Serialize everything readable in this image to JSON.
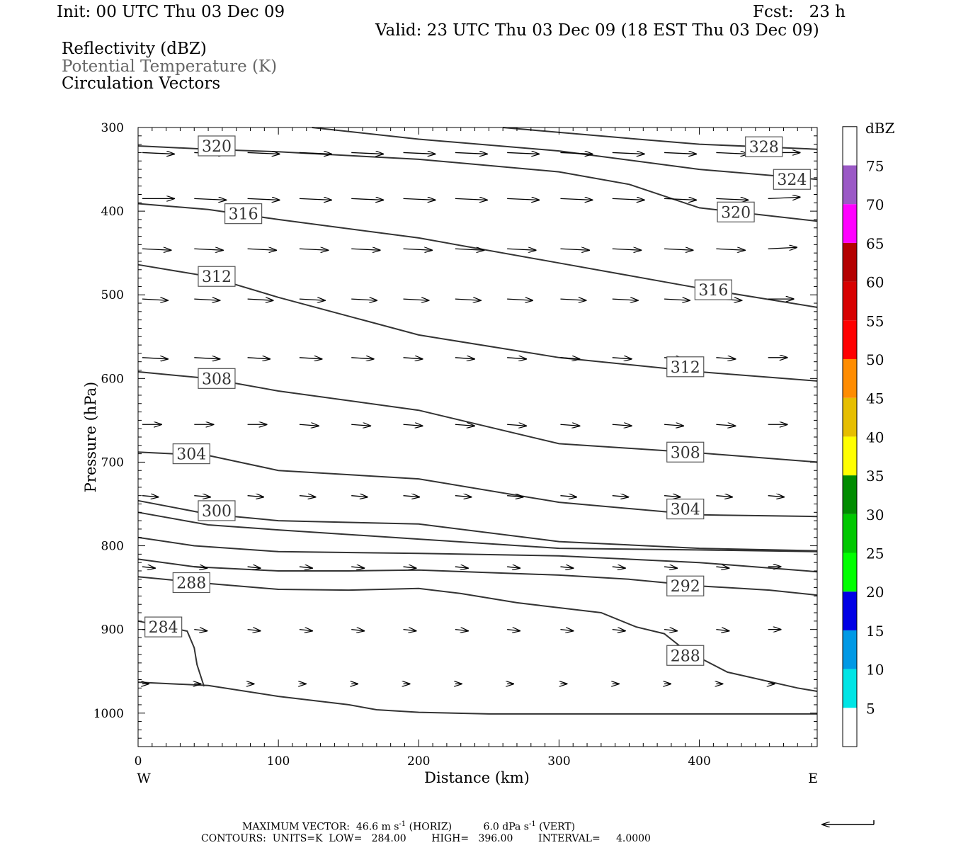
{
  "header": {
    "init": "Init: 00 UTC Thu 03 Dec 09",
    "fcst": "Fcst:   23 h",
    "valid": "Valid: 23 UTC Thu 03 Dec 09 (18 EST Thu 03 Dec 09)",
    "fields": [
      "Reflectivity (dBZ)",
      "Potential Temperature (K)",
      "Circulation Vectors"
    ]
  },
  "footer": {
    "max_vector_prefix": "MAXIMUM VECTOR:  46.6 m s",
    "max_vector_mid": " (HORIZ)          6.0 dPa s",
    "max_vector_suffix": " (VERT)",
    "superscript": "-1",
    "contours": "CONTOURS:  UNITS=K  LOW=   284.00        HIGH=   396.00        INTERVAL=     4.0000"
  },
  "colors": {
    "contour": "#333333",
    "vector": "#000000",
    "frame": "#000000",
    "legend_gray": "#666666"
  },
  "chart_data": {
    "type": "line",
    "description_fields": [
      "Reflectivity (dBZ)",
      "Potential Temperature (K)",
      "Circulation Vectors"
    ],
    "xlabel": "Distance (km)",
    "ylabel": "Pressure (hPa)",
    "xlim": [
      0,
      484
    ],
    "ylim": [
      300,
      1040
    ],
    "y_inverted": true,
    "x_ticks": [
      0,
      100,
      200,
      300,
      400
    ],
    "y_ticks": [
      300,
      400,
      500,
      600,
      700,
      800,
      900,
      1000
    ],
    "x_end_labels": {
      "left": "W",
      "right": "E"
    },
    "grid": false,
    "contour_units": "K",
    "contours": [
      {
        "value": 284,
        "label": "284",
        "points": [
          [
            0,
            963
          ],
          [
            50,
            967
          ],
          [
            100,
            980
          ],
          [
            150,
            990
          ],
          [
            170,
            996
          ],
          [
            200,
            999
          ],
          [
            250,
            1001
          ],
          [
            300,
            1001
          ],
          [
            350,
            1001
          ],
          [
            400,
            1001
          ],
          [
            484,
            1001
          ]
        ]
      },
      {
        "value": 284,
        "label": "",
        "points": [
          [
            0,
            890
          ],
          [
            35,
            902
          ],
          [
            40,
            922
          ],
          [
            42,
            942
          ],
          [
            47,
            968
          ]
        ]
      },
      {
        "value": 288,
        "label": "288",
        "points": [
          [
            0,
            837
          ],
          [
            50,
            845
          ],
          [
            100,
            852
          ],
          [
            150,
            853
          ],
          [
            200,
            851
          ],
          [
            230,
            857
          ],
          [
            270,
            868
          ],
          [
            330,
            880
          ],
          [
            355,
            897
          ],
          [
            375,
            905
          ],
          [
            390,
            925
          ],
          [
            420,
            951
          ],
          [
            470,
            970
          ],
          [
            484,
            974
          ]
        ]
      },
      {
        "value": 288,
        "label": "288",
        "points": [
          [
            387,
            924
          ],
          [
            390,
            925
          ]
        ]
      },
      {
        "value": 292,
        "label": "292",
        "points": [
          [
            0,
            816
          ],
          [
            40,
            825
          ],
          [
            100,
            830
          ],
          [
            150,
            830
          ],
          [
            200,
            829
          ],
          [
            300,
            835
          ],
          [
            350,
            840
          ],
          [
            400,
            848
          ],
          [
            450,
            853
          ],
          [
            484,
            859
          ]
        ]
      },
      {
        "value": 296,
        "label": "",
        "points": [
          [
            0,
            790
          ],
          [
            40,
            800
          ],
          [
            100,
            807
          ],
          [
            200,
            809
          ],
          [
            300,
            812
          ],
          [
            400,
            820
          ],
          [
            484,
            831
          ]
        ]
      },
      {
        "value": 296,
        "label": "",
        "points": [
          [
            0,
            760
          ],
          [
            50,
            775
          ],
          [
            100,
            781
          ],
          [
            200,
            792
          ],
          [
            300,
            803
          ],
          [
            400,
            805
          ],
          [
            484,
            807
          ]
        ]
      },
      {
        "value": 300,
        "label": "300",
        "points": [
          [
            0,
            746
          ],
          [
            50,
            762
          ],
          [
            100,
            770
          ],
          [
            200,
            774
          ],
          [
            300,
            795
          ],
          [
            400,
            803
          ],
          [
            484,
            806
          ]
        ]
      },
      {
        "value": 304,
        "label": "304",
        "points": [
          [
            0,
            688
          ],
          [
            50,
            692
          ],
          [
            100,
            710
          ],
          [
            200,
            720
          ],
          [
            300,
            748
          ],
          [
            400,
            763
          ],
          [
            484,
            765
          ]
        ]
      },
      {
        "value": 308,
        "label": "308",
        "points": [
          [
            0,
            592
          ],
          [
            50,
            600
          ],
          [
            100,
            615
          ],
          [
            200,
            638
          ],
          [
            300,
            678
          ],
          [
            400,
            689
          ],
          [
            484,
            700
          ]
        ]
      },
      {
        "value": 312,
        "label": "312",
        "points": [
          [
            0,
            464
          ],
          [
            50,
            478
          ],
          [
            100,
            503
          ],
          [
            200,
            548
          ],
          [
            300,
            575
          ],
          [
            400,
            592
          ],
          [
            484,
            603
          ]
        ]
      },
      {
        "value": 316,
        "label": "316",
        "points": [
          [
            0,
            391
          ],
          [
            50,
            398
          ],
          [
            100,
            410
          ],
          [
            200,
            432
          ],
          [
            300,
            462
          ],
          [
            400,
            492
          ],
          [
            484,
            515
          ]
        ]
      },
      {
        "value": 320,
        "label": "320",
        "points": [
          [
            0,
            322
          ],
          [
            50,
            326
          ],
          [
            100,
            329
          ],
          [
            200,
            338
          ],
          [
            300,
            353
          ],
          [
            350,
            368
          ],
          [
            400,
            396
          ],
          [
            484,
            412
          ]
        ]
      },
      {
        "value": 324,
        "label": "324",
        "points": [
          [
            124,
            300
          ],
          [
            200,
            314
          ],
          [
            300,
            328
          ],
          [
            400,
            350
          ],
          [
            484,
            362
          ]
        ]
      },
      {
        "value": 328,
        "label": "328",
        "points": [
          [
            260,
            300
          ],
          [
            350,
            313
          ],
          [
            400,
            320
          ],
          [
            484,
            326
          ]
        ]
      }
    ],
    "contour_labels": [
      {
        "text": "320",
        "x": 56,
        "y": 322
      },
      {
        "text": "316",
        "x": 75,
        "y": 403
      },
      {
        "text": "312",
        "x": 56,
        "y": 478
      },
      {
        "text": "316",
        "x": 410,
        "y": 494
      },
      {
        "text": "308",
        "x": 56,
        "y": 600
      },
      {
        "text": "312",
        "x": 390,
        "y": 586
      },
      {
        "text": "304",
        "x": 38,
        "y": 690
      },
      {
        "text": "308",
        "x": 390,
        "y": 688
      },
      {
        "text": "300",
        "x": 56,
        "y": 758
      },
      {
        "text": "304",
        "x": 390,
        "y": 756
      },
      {
        "text": "288",
        "x": 38,
        "y": 844
      },
      {
        "text": "292",
        "x": 390,
        "y": 848
      },
      {
        "text": "284",
        "x": 18,
        "y": 897
      },
      {
        "text": "288",
        "x": 390,
        "y": 931
      },
      {
        "text": "328",
        "x": 446,
        "y": 323
      },
      {
        "text": "324",
        "x": 466,
        "y": 362
      },
      {
        "text": "320",
        "x": 426,
        "y": 401
      }
    ],
    "vector_rows": [
      {
        "pressure": 330,
        "x": [
          0,
          37,
          75,
          112,
          149,
          186,
          223,
          260,
          298,
          335,
          372,
          409,
          446
        ],
        "u": [
          1.0,
          1.0,
          1.0,
          1.0,
          1.0,
          1.0,
          1.0,
          1.0,
          1.0,
          1.0,
          1.0,
          1.0,
          1.0
        ],
        "dy": [
          1,
          1,
          1,
          1,
          1,
          1,
          1,
          1,
          1,
          1,
          1,
          1,
          0
        ]
      },
      {
        "pressure": 385,
        "x": [
          0,
          37,
          75,
          112,
          149,
          186,
          223,
          260,
          298,
          335,
          372,
          409,
          446
        ],
        "u": [
          1.0,
          1.0,
          1.0,
          1.0,
          1.0,
          1.0,
          1.0,
          1.0,
          1.0,
          1.0,
          1.0,
          1.0,
          1.0
        ],
        "dy": [
          0,
          1,
          1,
          1,
          1,
          1,
          1,
          1,
          1,
          1,
          1,
          1,
          -1
        ]
      },
      {
        "pressure": 445,
        "x": [
          0,
          37,
          75,
          112,
          149,
          186,
          223,
          260,
          298,
          335,
          372,
          409,
          446
        ],
        "u": [
          0.9,
          0.9,
          0.9,
          0.9,
          0.9,
          0.9,
          0.9,
          0.9,
          0.9,
          0.9,
          0.9,
          0.9,
          0.9
        ],
        "dy": [
          1,
          1,
          1,
          1,
          1,
          1,
          1,
          1,
          1,
          1,
          1,
          1,
          -1
        ]
      },
      {
        "pressure": 505,
        "x": [
          0,
          37,
          75,
          112,
          149,
          186,
          223,
          260,
          298,
          335,
          372,
          409,
          446
        ],
        "u": [
          0.8,
          0.8,
          0.8,
          0.8,
          0.8,
          0.8,
          0.8,
          0.8,
          0.8,
          0.8,
          0.8,
          0.8,
          0.8
        ],
        "dy": [
          1,
          1,
          1,
          1,
          1,
          1,
          1,
          1,
          1,
          1,
          1,
          1,
          0
        ]
      },
      {
        "pressure": 575,
        "x": [
          0,
          37,
          75,
          112,
          149,
          186,
          223,
          260,
          298,
          335,
          372,
          409,
          446
        ],
        "u": [
          0.8,
          0.8,
          0.7,
          0.7,
          0.7,
          0.6,
          0.6,
          0.6,
          0.6,
          0.6,
          0.6,
          0.6,
          0.6
        ],
        "dy": [
          1,
          1,
          1,
          1,
          1,
          1,
          1,
          1,
          1,
          1,
          1,
          1,
          0
        ]
      },
      {
        "pressure": 655,
        "x": [
          0,
          37,
          75,
          112,
          149,
          186,
          223,
          260,
          298,
          335,
          372,
          409,
          446
        ],
        "u": [
          0.6,
          0.6,
          0.6,
          0.6,
          0.6,
          0.6,
          0.6,
          0.6,
          0.6,
          0.6,
          0.6,
          0.6,
          0.6
        ],
        "dy": [
          0,
          0,
          0,
          1,
          1,
          1,
          1,
          1,
          1,
          1,
          1,
          1,
          0
        ]
      },
      {
        "pressure": 740,
        "x": [
          0,
          37,
          75,
          112,
          149,
          186,
          223,
          260,
          298,
          335,
          372,
          409,
          446
        ],
        "u": [
          0.5,
          0.5,
          0.5,
          0.5,
          0.5,
          0.5,
          0.5,
          0.5,
          0.5,
          0.5,
          0.5,
          0.5,
          0.5
        ],
        "dy": [
          1,
          1,
          1,
          1,
          1,
          1,
          1,
          1,
          1,
          1,
          1,
          1,
          1
        ]
      },
      {
        "pressure": 825,
        "x": [
          0,
          37,
          75,
          112,
          149,
          186,
          223,
          260,
          298,
          335,
          372,
          409,
          446
        ],
        "u": [
          0.4,
          0.4,
          0.4,
          0.4,
          0.4,
          0.4,
          0.4,
          0.4,
          0.4,
          0.4,
          0.4,
          0.4,
          0.4
        ],
        "dy": [
          1,
          1,
          1,
          1,
          1,
          1,
          1,
          1,
          1,
          1,
          1,
          1,
          0
        ]
      },
      {
        "pressure": 900,
        "x": [
          0,
          37,
          75,
          112,
          149,
          186,
          223,
          260,
          298,
          335,
          372,
          409,
          446
        ],
        "u": [
          0.4,
          0.4,
          0.4,
          0.4,
          0.4,
          0.4,
          0.4,
          0.4,
          0.4,
          0.4,
          0.4,
          0.4,
          0.4
        ],
        "dy": [
          1,
          1,
          1,
          1,
          1,
          1,
          1,
          1,
          1,
          1,
          1,
          1,
          0
        ]
      },
      {
        "pressure": 965,
        "x": [
          0,
          37,
          75,
          112,
          149,
          186,
          223,
          260,
          298,
          335,
          372,
          409,
          446
        ],
        "u": [
          0.2,
          0.2,
          0.2,
          0.2,
          0.2,
          0.2,
          0.2,
          0.2,
          0.2,
          0.2,
          0.2,
          0.2,
          0.2
        ],
        "dy": [
          0,
          0,
          0,
          0,
          0,
          0,
          0,
          0,
          0,
          0,
          0,
          0,
          0
        ]
      }
    ],
    "reference_vector": {
      "direction": "left"
    },
    "colorbar": {
      "label": "dBZ",
      "levels": [
        "5",
        "10",
        "15",
        "20",
        "25",
        "30",
        "35",
        "40",
        "45",
        "50",
        "55",
        "60",
        "65",
        "70",
        "75"
      ],
      "colors": [
        "#ffffff",
        "#00e5e5",
        "#0099e5",
        "#0000e5",
        "#00ff00",
        "#00c800",
        "#008c00",
        "#ffff00",
        "#e6be00",
        "#ff8c00",
        "#ff0000",
        "#d70000",
        "#b40000",
        "#ff00ff",
        "#9b59c6",
        "#ffffff"
      ]
    }
  }
}
